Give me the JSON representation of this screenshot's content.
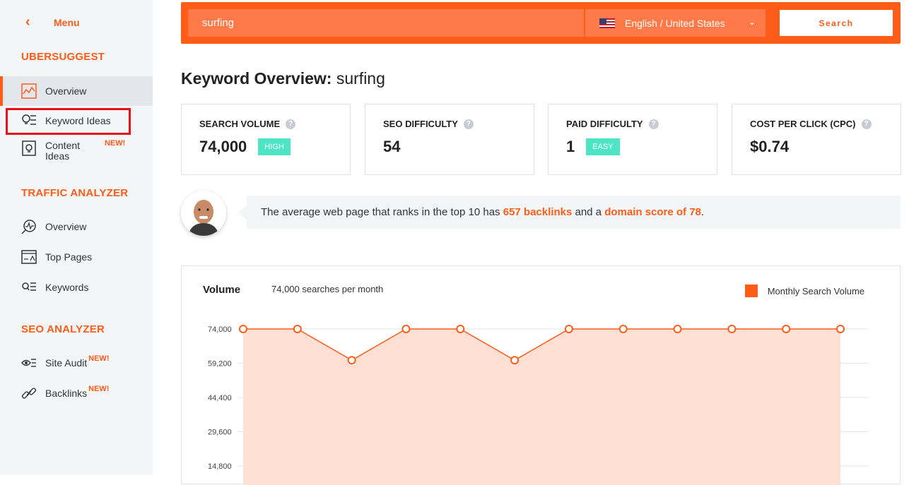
{
  "sidebar": {
    "menu_label": "Menu",
    "sections": {
      "ubersuggest": "UBERSUGGEST",
      "traffic": "TRAFFIC ANALYZER",
      "seo": "SEO ANALYZER"
    },
    "items": {
      "overview": "Overview",
      "keyword_ideas": "Keyword Ideas",
      "content_ideas_1": "Content",
      "content_ideas_2": "Ideas",
      "traffic_overview": "Overview",
      "top_pages": "Top Pages",
      "keywords": "Keywords",
      "site_audit": "Site Audit",
      "backlinks": "Backlinks"
    },
    "new_badge": "NEW!"
  },
  "search": {
    "query": "surfing",
    "language": "English / United States",
    "button": "Search"
  },
  "title": {
    "prefix": "Keyword Overview:",
    "keyword": "surfing"
  },
  "metrics": {
    "volume_label": "SEARCH VOLUME",
    "volume_value": "74,000",
    "volume_badge": "HIGH",
    "seo_label": "SEO DIFFICULTY",
    "seo_value": "54",
    "paid_label": "PAID DIFFICULTY",
    "paid_value": "1",
    "paid_badge": "EASY",
    "cpc_label": "COST PER CLICK (CPC)",
    "cpc_value": "$0.74",
    "help": "?"
  },
  "tip": {
    "text_1": "The average web page that ranks in the top 10 has ",
    "hl_1": "657 backlinks",
    "text_2": " and a ",
    "hl_2": "domain score of 78",
    "text_3": "."
  },
  "chart_header": {
    "title": "Volume",
    "subtitle": "74,000 searches per month"
  },
  "chart_data": {
    "type": "area",
    "x": [
      1,
      2,
      3,
      4,
      5,
      6,
      7,
      8,
      9,
      10,
      11,
      12
    ],
    "series": [
      {
        "name": "Monthly Search Volume",
        "values": [
          74000,
          74000,
          60500,
          74000,
          74000,
          60500,
          74000,
          74000,
          74000,
          74000,
          74000,
          74000
        ]
      }
    ],
    "y_ticks": [
      "74,000",
      "59,200",
      "44,400",
      "29,600",
      "14,800"
    ],
    "y_tick_values": [
      74000,
      59200,
      44400,
      29600,
      14800
    ],
    "colors": {
      "line": "#ff5c1a",
      "fill": "#fde0d3"
    },
    "grid": true,
    "legend": "top-right"
  }
}
